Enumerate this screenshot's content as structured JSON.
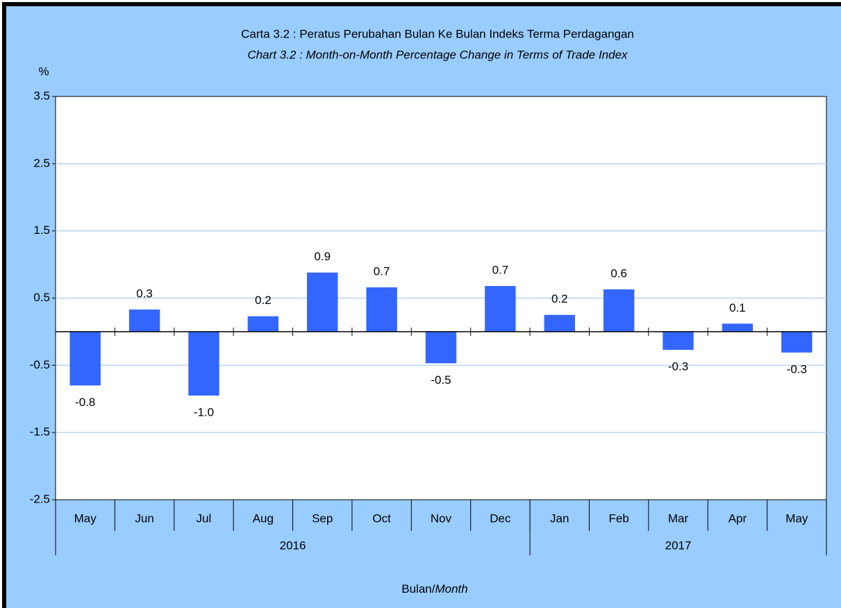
{
  "chart_data": {
    "type": "bar",
    "title": "Carta 3.2 :  Peratus Perubahan Bulan Ke Bulan Indeks Terma Perdagangan",
    "subtitle": "Chart 3.2 :  Month-on-Month Percentage Change in Terms of  Trade Index",
    "y_label": "%",
    "x_label": "Bulan/",
    "x_label_italic": "Month",
    "groups": [
      {
        "name": "2016",
        "categories": [
          "May",
          "Jun",
          "Jul",
          "Aug",
          "Sep",
          "Oct",
          "Nov",
          "Dec"
        ]
      },
      {
        "name": "2017",
        "categories": [
          "Jan",
          "Feb",
          "Mar",
          "Apr",
          "May"
        ]
      }
    ],
    "values": [
      -0.8,
      0.33,
      -0.95,
      0.23,
      0.88,
      0.66,
      -0.47,
      0.68,
      0.25,
      0.63,
      -0.27,
      0.12,
      -0.31
    ],
    "value_labels": [
      "-0.8",
      "0.3",
      "-1.0",
      "0.2",
      "0.9",
      "0.7",
      "-0.5",
      "0.7",
      "0.2",
      "0.6",
      "-0.3",
      "0.1",
      "-0.3"
    ],
    "color": "#3366ff",
    "ylim": [
      -2.5,
      3.5
    ],
    "yticks": [
      -2.5,
      -1.5,
      -0.5,
      0.5,
      1.5,
      2.5,
      3.5
    ],
    "grid": true
  }
}
